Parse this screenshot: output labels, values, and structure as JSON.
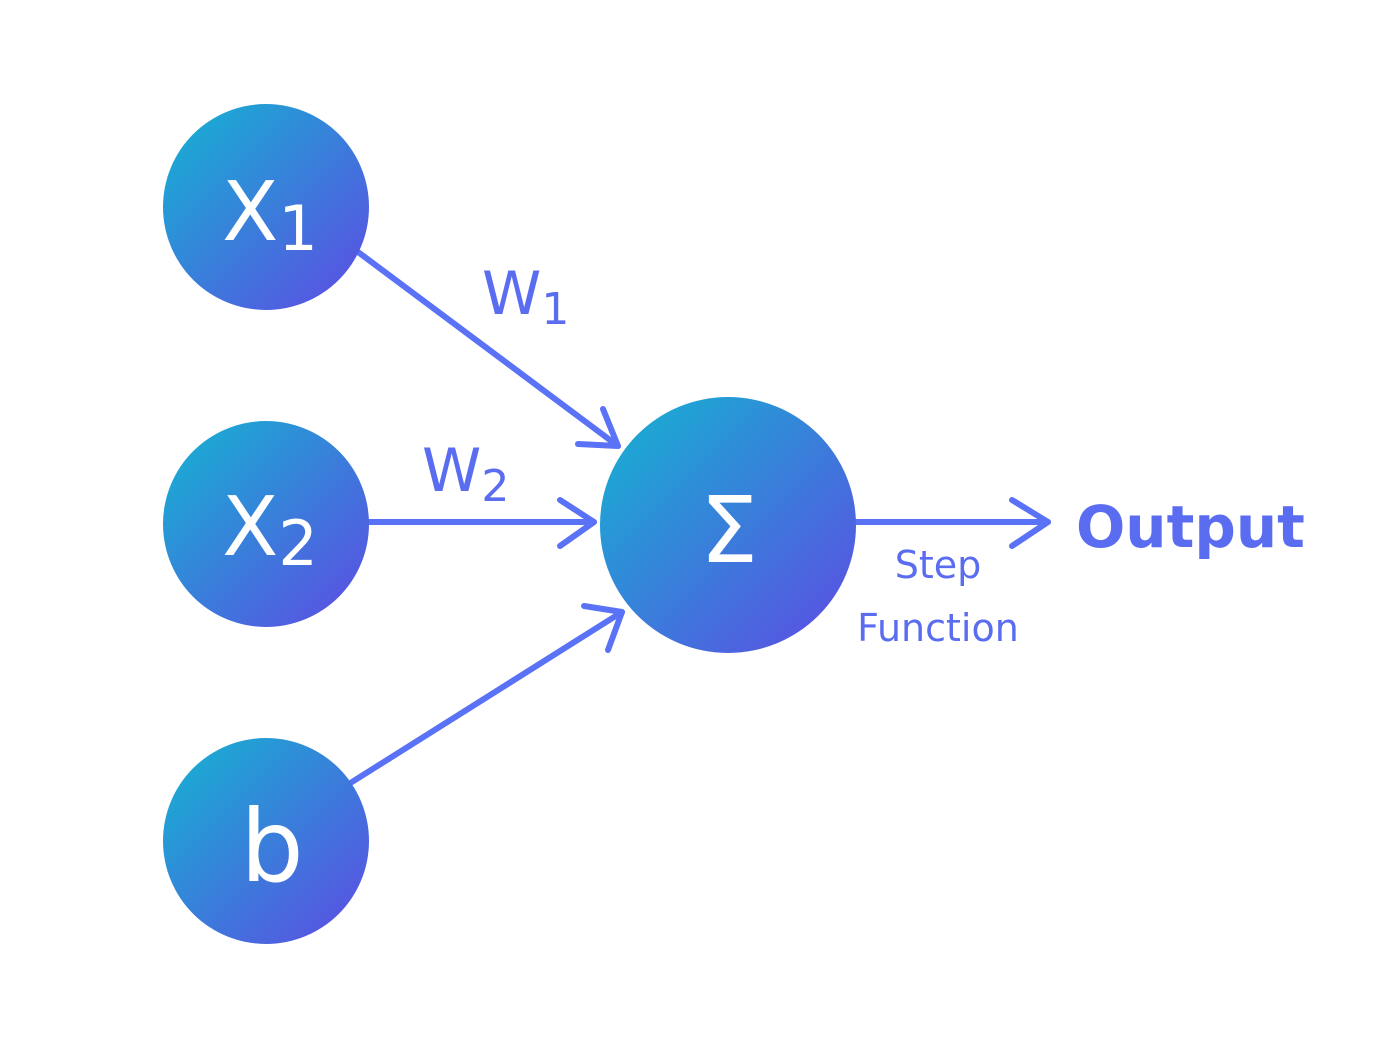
{
  "nodes": {
    "x1": {
      "symbol": "X",
      "subscript": "1"
    },
    "x2": {
      "symbol": "X",
      "subscript": "2"
    },
    "bias": {
      "label": "b"
    },
    "sum": {
      "label": "Σ"
    }
  },
  "weights": {
    "w1": {
      "symbol": "W",
      "subscript": "1"
    },
    "w2": {
      "symbol": "W",
      "subscript": "2"
    }
  },
  "activation": {
    "line1": "Step",
    "line2": "Function"
  },
  "output": {
    "label": "Output"
  },
  "colors": {
    "arrow": "#5a72f5",
    "node_gradient_start": "#1ea5d4",
    "node_gradient_end": "#5b4fe3",
    "text_accent": "#5a6cf0",
    "node_text": "#ffffff"
  }
}
